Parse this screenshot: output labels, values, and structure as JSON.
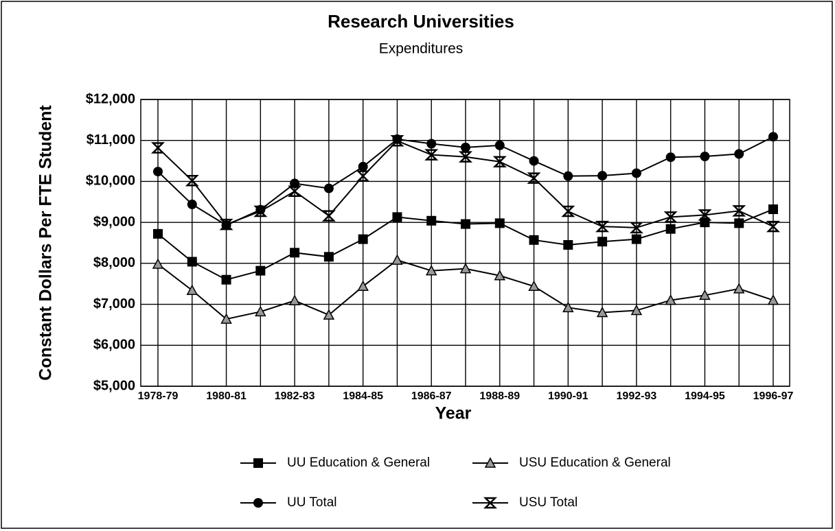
{
  "chart_data": {
    "type": "line",
    "title": "Research Universities",
    "subtitle": "Expenditures",
    "x_label": "Year",
    "y_label": "Constant Dollars Per FTE Student",
    "categories": [
      "1978-79",
      null,
      "1980-81",
      null,
      "1982-83",
      null,
      "1984-85",
      null,
      "1986-87",
      null,
      "1988-89",
      null,
      "1990-91",
      null,
      "1992-93",
      null,
      "1994-95",
      null,
      "1996-97"
    ],
    "ylim": [
      5000,
      12000
    ],
    "yticks": [
      {
        "value": 5000,
        "label": "$5,000"
      },
      {
        "value": 6000,
        "label": "$6,000"
      },
      {
        "value": 7000,
        "label": "$7,000"
      },
      {
        "value": 8000,
        "label": "$8,000"
      },
      {
        "value": 9000,
        "label": "$9,000"
      },
      {
        "value": 10000,
        "label": "$10,000"
      },
      {
        "value": 11000,
        "label": "$11,000"
      },
      {
        "value": 12000,
        "label": "$12,000"
      }
    ],
    "grid": true,
    "series": [
      {
        "name": "UU Education & General",
        "color": "#000000",
        "marker": "square",
        "values": [
          8720,
          8040,
          7600,
          7820,
          8260,
          8160,
          8590,
          9130,
          9040,
          8960,
          8980,
          8570,
          8450,
          8530,
          8590,
          8840,
          9000,
          8980,
          9320
        ]
      },
      {
        "name": "USU Education & General",
        "color": "#000000",
        "marker": "triangle",
        "values": [
          7980,
          7340,
          6640,
          6820,
          7090,
          6740,
          7440,
          8080,
          7820,
          7870,
          7700,
          7440,
          6920,
          6800,
          6850,
          7100,
          7220,
          7380,
          7100
        ]
      },
      {
        "name": "UU Total",
        "color": "#000000",
        "marker": "circle",
        "values": [
          10240,
          9440,
          8930,
          9310,
          9950,
          9830,
          10360,
          11030,
          10920,
          10830,
          10880,
          10500,
          10130,
          10140,
          10200,
          10590,
          10610,
          10670,
          11090
        ]
      },
      {
        "name": "USU Total",
        "color": "#000000",
        "marker": "x",
        "values": [
          10820,
          10020,
          8950,
          9270,
          9760,
          9160,
          10130,
          10990,
          10650,
          10600,
          10480,
          10080,
          9270,
          8900,
          8870,
          9130,
          9180,
          9280,
          8900
        ]
      }
    ]
  }
}
